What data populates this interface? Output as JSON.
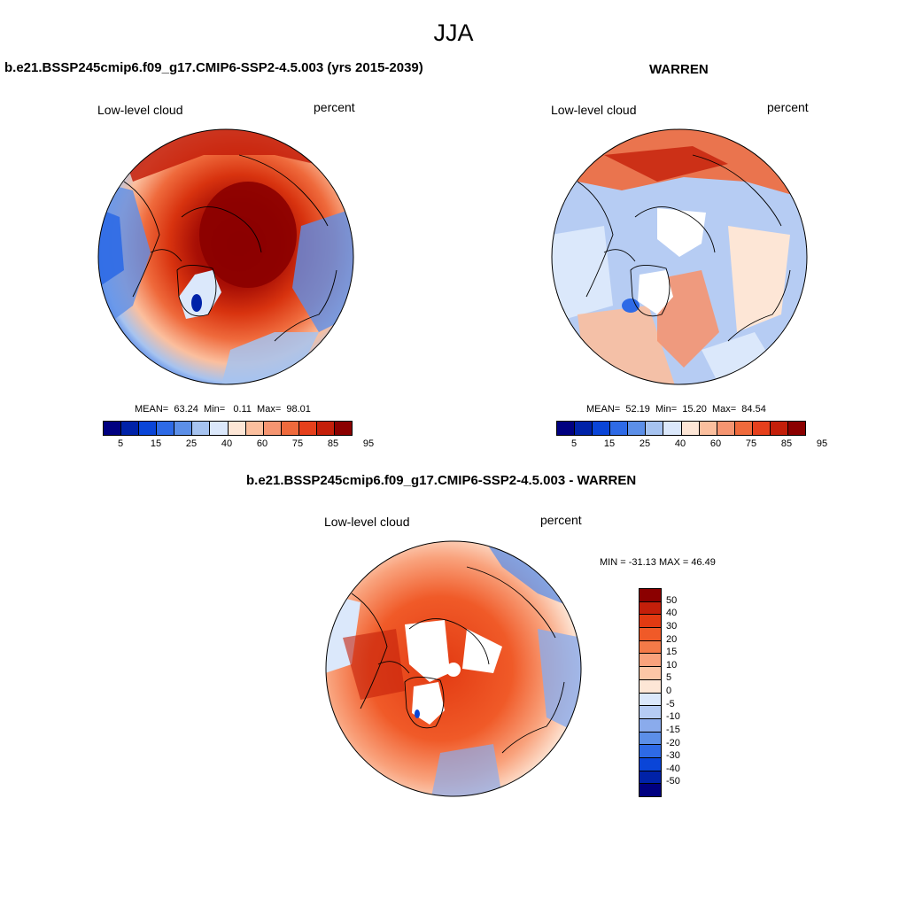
{
  "season": "JJA",
  "panel_left": {
    "title": "b.e21.BSSP245cmip6.f09_g17.CMIP6-SSP2-4.5.003 (yrs 2015-2039)",
    "variable": "Low-level cloud",
    "units": "percent",
    "stats": {
      "mean_label": "MEAN=",
      "mean": "63.24",
      "min_label": "Min=",
      "min": "0.11",
      "max_label": "Max=",
      "max": "98.01"
    }
  },
  "panel_right": {
    "title": "WARREN",
    "variable": "Low-level cloud",
    "units": "percent",
    "stats": {
      "mean_label": "MEAN=",
      "mean": "52.19",
      "min_label": "Min=",
      "min": "15.20",
      "max_label": "Max=",
      "max": "84.54"
    }
  },
  "panel_diff": {
    "title": "b.e21.BSSP245cmip6.f09_g17.CMIP6-SSP2-4.5.003 - WARREN",
    "variable": "Low-level cloud",
    "units": "percent",
    "minmax": "MIN = -31.13 MAX =  46.49"
  },
  "colorbar_abs": {
    "colors": [
      "#000080",
      "#0022a8",
      "#0a45d8",
      "#2e6ae6",
      "#5c8fe8",
      "#a6c3f0",
      "#dbe8fb",
      "#fde6d6",
      "#fbbf9e",
      "#f59571",
      "#ef6a3c",
      "#e6401c",
      "#c41f0a",
      "#8b0000"
    ],
    "tick_labels": [
      "5",
      "15",
      "25",
      "40",
      "60",
      "75",
      "85",
      "95"
    ]
  },
  "colorbar_diff": {
    "colors": [
      "#8b0000",
      "#c41f0a",
      "#e23a12",
      "#f05a28",
      "#f47a48",
      "#f9a27c",
      "#fcc6a6",
      "#fde6d6",
      "#dbe8fb",
      "#b6ccf3",
      "#8aabec",
      "#5c8fe8",
      "#2e6ae6",
      "#0a45d8",
      "#0022a8",
      "#000080"
    ],
    "tick_labels": [
      "50",
      "40",
      "30",
      "20",
      "15",
      "10",
      "5",
      "0",
      "-5",
      "-10",
      "-15",
      "-20",
      "-30",
      "-40",
      "-50"
    ]
  }
}
